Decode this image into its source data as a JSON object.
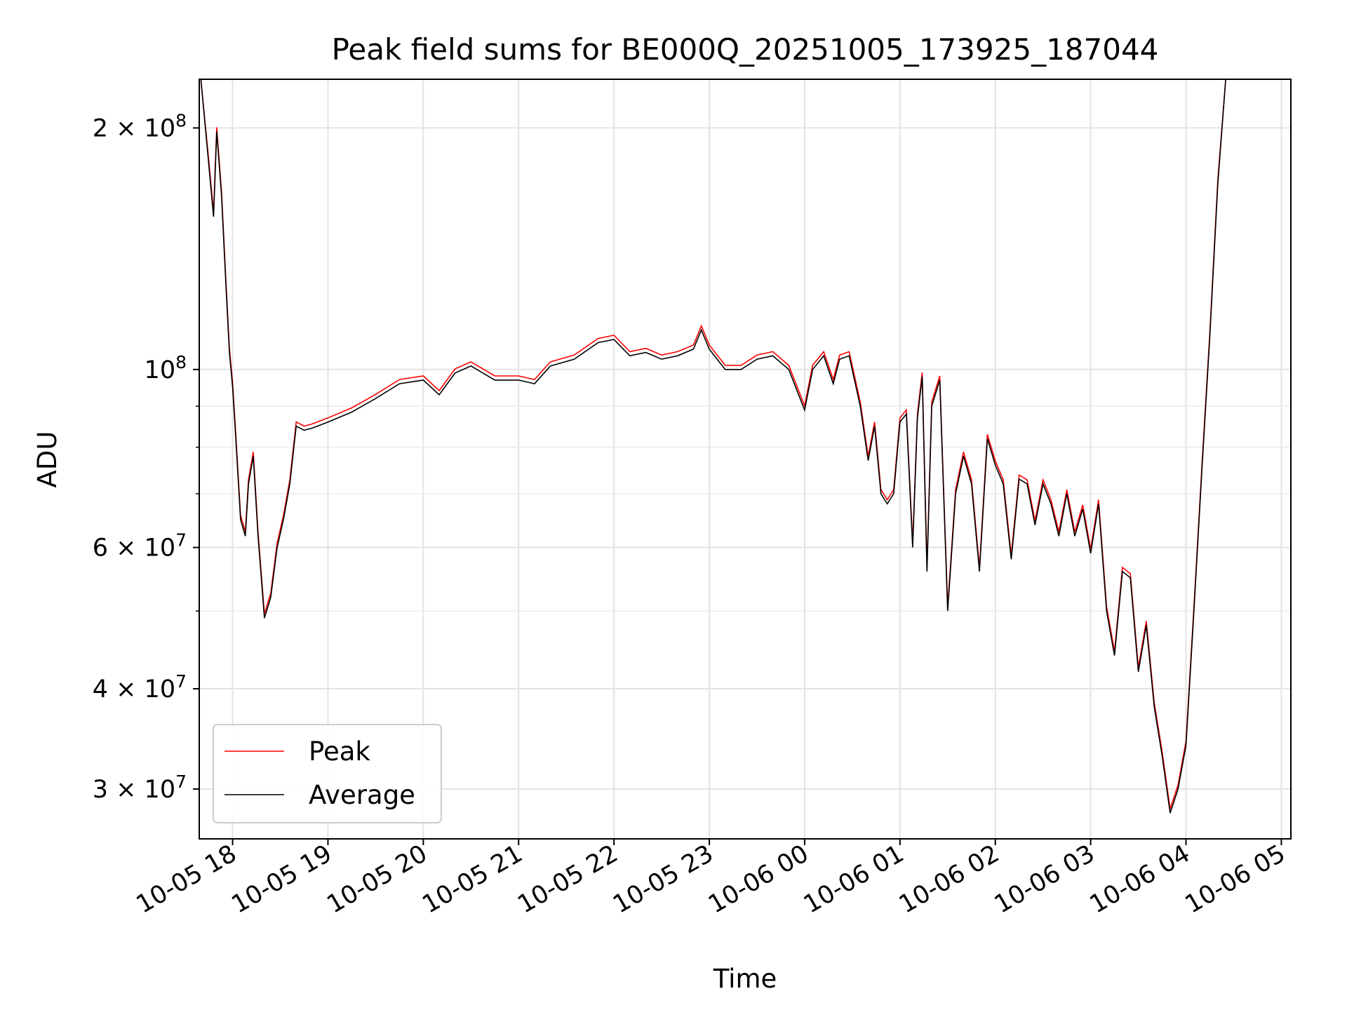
{
  "chart_data": {
    "type": "line",
    "title": "Peak field sums for BE000Q_20251005_173925_187044",
    "xlabel": "Time",
    "ylabel": "ADU",
    "yscale": "log",
    "ylim": [
      26000000,
      230000000
    ],
    "xlim": [
      "10-05 17:39",
      "10-06 05:06"
    ],
    "x_ticks": [
      "10-05 18",
      "10-05 19",
      "10-05 20",
      "10-05 21",
      "10-05 22",
      "10-05 23",
      "10-06 00",
      "10-06 01",
      "10-06 02",
      "10-06 03",
      "10-06 04",
      "10-06 05"
    ],
    "y_ticks": [
      {
        "value": 200000000,
        "mantissa": "2",
        "exponent": "8"
      },
      {
        "value": 100000000,
        "mantissa": "",
        "exponent": "8"
      },
      {
        "value": 60000000,
        "mantissa": "6",
        "exponent": "7"
      },
      {
        "value": 40000000,
        "mantissa": "4",
        "exponent": "7"
      },
      {
        "value": 30000000,
        "mantissa": "3",
        "exponent": "7"
      }
    ],
    "grid": true,
    "legend_position": "lower-left",
    "series": [
      {
        "name": "Peak",
        "color": "#ff0000"
      },
      {
        "name": "Average",
        "color": "#000000"
      }
    ],
    "x": [
      "10-05 17:40",
      "10-05 17:45",
      "10-05 17:48",
      "10-05 17:50",
      "10-05 17:53",
      "10-05 17:56",
      "10-05 17:58",
      "10-05 18:00",
      "10-05 18:02",
      "10-05 18:05",
      "10-05 18:08",
      "10-05 18:10",
      "10-05 18:13",
      "10-05 18:16",
      "10-05 18:20",
      "10-05 18:24",
      "10-05 18:28",
      "10-05 18:32",
      "10-05 18:36",
      "10-05 18:40",
      "10-05 18:45",
      "10-05 18:50",
      "10-05 19:00",
      "10-05 19:15",
      "10-05 19:30",
      "10-05 19:45",
      "10-05 20:00",
      "10-05 20:10",
      "10-05 20:20",
      "10-05 20:30",
      "10-05 20:45",
      "10-05 21:00",
      "10-05 21:10",
      "10-05 21:20",
      "10-05 21:35",
      "10-05 21:50",
      "10-05 22:00",
      "10-05 22:10",
      "10-05 22:20",
      "10-05 22:30",
      "10-05 22:40",
      "10-05 22:50",
      "10-05 22:55",
      "10-05 23:00",
      "10-05 23:10",
      "10-05 23:20",
      "10-05 23:30",
      "10-05 23:40",
      "10-05 23:50",
      "10-06 00:00",
      "10-06 00:05",
      "10-06 00:12",
      "10-06 00:18",
      "10-06 00:22",
      "10-06 00:28",
      "10-06 00:35",
      "10-06 00:40",
      "10-06 00:44",
      "10-06 00:48",
      "10-06 00:52",
      "10-06 00:56",
      "10-06 01:00",
      "10-06 01:04",
      "10-06 01:08",
      "10-06 01:11",
      "10-06 01:14",
      "10-06 01:17",
      "10-06 01:20",
      "10-06 01:25",
      "10-06 01:30",
      "10-06 01:35",
      "10-06 01:40",
      "10-06 01:45",
      "10-06 01:50",
      "10-06 01:55",
      "10-06 02:00",
      "10-06 02:05",
      "10-06 02:10",
      "10-06 02:15",
      "10-06 02:20",
      "10-06 02:25",
      "10-06 02:30",
      "10-06 02:35",
      "10-06 02:40",
      "10-06 02:45",
      "10-06 02:50",
      "10-06 02:55",
      "10-06 03:00",
      "10-06 03:05",
      "10-06 03:10",
      "10-06 03:15",
      "10-06 03:20",
      "10-06 03:25",
      "10-06 03:30",
      "10-06 03:35",
      "10-06 03:40",
      "10-06 03:45",
      "10-06 03:50",
      "10-06 03:55",
      "10-06 04:00",
      "10-06 04:05",
      "10-06 04:10",
      "10-06 04:15",
      "10-06 04:20",
      "10-06 04:25",
      "10-06 04:30",
      "10-06 04:35",
      "10-06 04:40",
      "10-06 04:45",
      "10-06 04:50",
      "10-06 04:55",
      "10-06 05:00",
      "10-06 05:03"
    ],
    "y": [
      230000000,
      180000000,
      155000000,
      198000000,
      165000000,
      125000000,
      105000000,
      95000000,
      82000000,
      65000000,
      62000000,
      72000000,
      78000000,
      62000000,
      49000000,
      52000000,
      60000000,
      65000000,
      72000000,
      85000000,
      84000000,
      84500000,
      86000000,
      88500000,
      92000000,
      96000000,
      97000000,
      93000000,
      99000000,
      101000000,
      97000000,
      97000000,
      96000000,
      101000000,
      103000000,
      108000000,
      109000000,
      104000000,
      105000000,
      103000000,
      104000000,
      106000000,
      112000000,
      106000000,
      100000000,
      100000000,
      103000000,
      104000000,
      100000000,
      89000000,
      100000000,
      104000000,
      96000000,
      103000000,
      104000000,
      90000000,
      77000000,
      85000000,
      70000000,
      68000000,
      70000000,
      86000000,
      88000000,
      60000000,
      87000000,
      98000000,
      56000000,
      90000000,
      97000000,
      50000000,
      70000000,
      78000000,
      72000000,
      56000000,
      82000000,
      76000000,
      72000000,
      58000000,
      73000000,
      72000000,
      64000000,
      72000000,
      68000000,
      62000000,
      70000000,
      62000000,
      67000000,
      59000000,
      68000000,
      50000000,
      44000000,
      56000000,
      55000000,
      42000000,
      48000000,
      38000000,
      33000000,
      28000000,
      30000000,
      34000000,
      50000000,
      75000000,
      110000000,
      170000000,
      230000000,
      230000000,
      230000000,
      230000000,
      230000000,
      230000000,
      230000000,
      230000000,
      230000000
    ],
    "peak_offset_ratio": 1.012
  }
}
